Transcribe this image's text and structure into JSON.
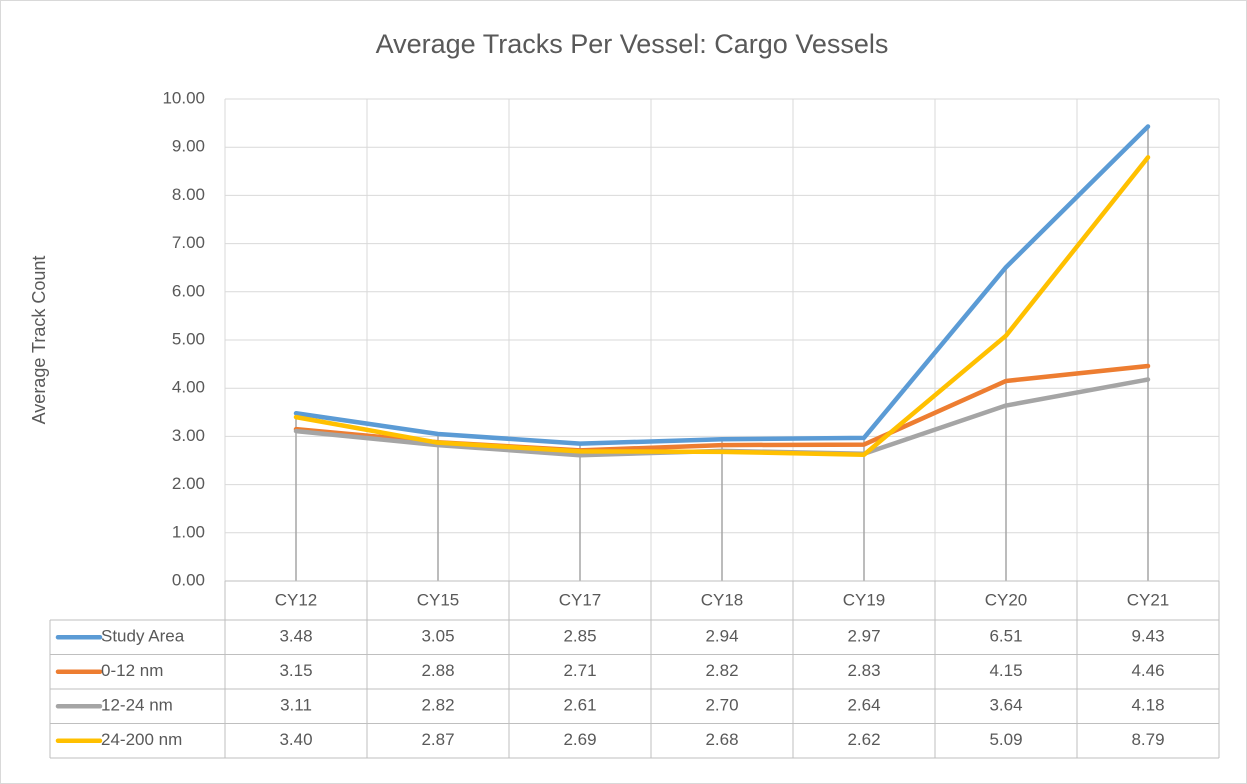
{
  "chart_data": {
    "type": "line",
    "title": "Average Tracks Per Vessel: Cargo Vessels",
    "y_label": "Average Track Count",
    "categories": [
      "CY12",
      "CY15",
      "CY17",
      "CY18",
      "CY19",
      "CY20",
      "CY21"
    ],
    "series": [
      {
        "name": "Study Area",
        "color": "#5b9bd5",
        "values": [
          3.48,
          3.05,
          2.85,
          2.94,
          2.97,
          6.51,
          9.43
        ],
        "value_labels": [
          "3.48",
          "3.05",
          "2.85",
          "2.94",
          "2.97",
          "6.51",
          "9.43"
        ]
      },
      {
        "name": "0-12 nm",
        "color": "#ed7d31",
        "values": [
          3.15,
          2.88,
          2.71,
          2.82,
          2.83,
          4.15,
          4.46
        ],
        "value_labels": [
          "3.15",
          "2.88",
          "2.71",
          "2.82",
          "2.83",
          "4.15",
          "4.46"
        ]
      },
      {
        "name": "12-24 nm",
        "color": "#a5a5a5",
        "values": [
          3.11,
          2.82,
          2.61,
          2.7,
          2.64,
          3.64,
          4.18
        ],
        "value_labels": [
          "3.11",
          "2.82",
          "2.61",
          "2.70",
          "2.64",
          "3.64",
          "4.18"
        ]
      },
      {
        "name": "24-200 nm",
        "color": "#ffc000",
        "values": [
          3.4,
          2.87,
          2.69,
          2.68,
          2.62,
          5.09,
          8.79
        ],
        "value_labels": [
          "3.40",
          "2.87",
          "2.69",
          "2.68",
          "2.62",
          "5.09",
          "8.79"
        ]
      }
    ],
    "ylim": [
      0,
      10
    ],
    "yticks": [
      {
        "value": 0,
        "label": "0.00"
      },
      {
        "value": 1,
        "label": "1.00"
      },
      {
        "value": 2,
        "label": "2.00"
      },
      {
        "value": 3,
        "label": "3.00"
      },
      {
        "value": 4,
        "label": "4.00"
      },
      {
        "value": 5,
        "label": "5.00"
      },
      {
        "value": 6,
        "label": "6.00"
      },
      {
        "value": 7,
        "label": "7.00"
      },
      {
        "value": 8,
        "label": "8.00"
      },
      {
        "value": 9,
        "label": "9.00"
      },
      {
        "value": 10,
        "label": "10.00"
      }
    ],
    "grid": true,
    "drop_lines": true,
    "data_table": true
  }
}
